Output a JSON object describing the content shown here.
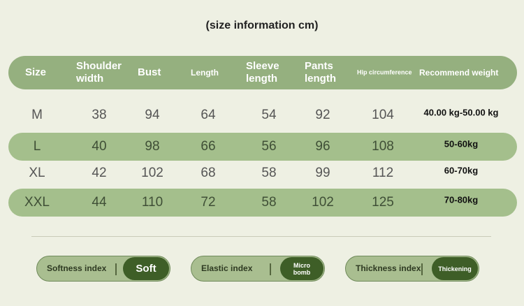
{
  "title": "(size information cm)",
  "headers": [
    "Size",
    "Shoulder width",
    "Bust",
    "Length",
    "Sleeve length",
    "Pants length",
    "Hip circumference",
    "Recommend weight"
  ],
  "rows": [
    [
      "M",
      "38",
      "94",
      "64",
      "54",
      "92",
      "104",
      "40.00 kg-50.00 kg"
    ],
    [
      "L",
      "40",
      "98",
      "66",
      "56",
      "96",
      "108",
      "50-60kg"
    ],
    [
      "XL",
      "42",
      "102",
      "68",
      "58",
      "99",
      "112",
      "60-70kg"
    ],
    [
      "XXL",
      "44",
      "110",
      "72",
      "58",
      "102",
      "125",
      "70-80kg"
    ]
  ],
  "indices": [
    {
      "label": "Softness index",
      "value": "Soft"
    },
    {
      "label": "Elastic index",
      "value": "Micro bomb"
    },
    {
      "label": "Thickness index",
      "value": "Thickening"
    }
  ],
  "colors": {
    "background": "#eef0e3",
    "header": "#95b07f",
    "band": "#a4bf8c",
    "pill_dark": "#3e5e27"
  }
}
